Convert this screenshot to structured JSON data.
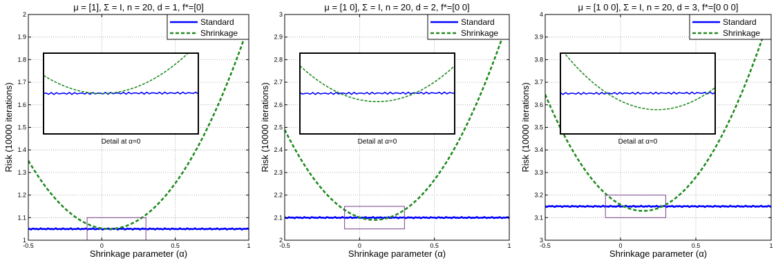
{
  "chart_data": [
    {
      "type": "line",
      "title": "μ = [1], Σ = I, n = 20, d = 1, f*=[0]",
      "xlabel": "Shrinkage parameter (α)",
      "ylabel": "Risk (10000 iterations)",
      "xlim": [
        -0.5,
        1
      ],
      "ylim": [
        1,
        2
      ],
      "xticks": [
        -0.5,
        0,
        0.5,
        1
      ],
      "xtick_labels": [
        "-0.5",
        "0",
        "0.5",
        "1"
      ],
      "yticks": [
        1,
        1.1,
        1.2,
        1.3,
        1.4,
        1.5,
        1.6,
        1.7,
        1.8,
        1.9,
        2
      ],
      "ytick_labels": [
        "1",
        "1.1",
        "1.2",
        "1.3",
        "1.4",
        "1.5",
        "1.6",
        "1.7",
        "1.8",
        "1.9",
        "2"
      ],
      "grid": true,
      "legend_position": "top-right",
      "series": [
        {
          "name": "Standard",
          "color": "#0000ff",
          "style": "solid",
          "standard_level": 1.05
        },
        {
          "name": "Shrinkage",
          "color": "#1f8a1f",
          "style": "dashed",
          "quad": {
            "min": 1.05,
            "vertex": 0.05,
            "curv": 1.0
          }
        }
      ],
      "detail_box": {
        "x": [
          -0.1,
          0.3
        ],
        "y": [
          1.0,
          1.1
        ]
      },
      "inset_label": "Detail at α=0"
    },
    {
      "type": "line",
      "title": "μ = [1 0], Σ = I, n = 20, d = 2, f*=[0 0]",
      "xlabel": "Shrinkage parameter (α)",
      "ylabel": "Risk (10000 iterations)",
      "xlim": [
        -0.5,
        1
      ],
      "ylim": [
        2,
        3
      ],
      "xticks": [
        -0.5,
        0,
        0.5,
        1
      ],
      "xtick_labels": [
        "-0.5",
        "0",
        "0.5",
        "1"
      ],
      "yticks": [
        2,
        2.1,
        2.2,
        2.3,
        2.4,
        2.5,
        2.6,
        2.7,
        2.8,
        2.9,
        3
      ],
      "ytick_labels": [
        "2",
        "2.1",
        "2.2",
        "2.3",
        "2.4",
        "2.5",
        "2.6",
        "2.7",
        "2.8",
        "2.9",
        "3"
      ],
      "grid": true,
      "legend_position": "top-right",
      "series": [
        {
          "name": "Standard",
          "color": "#0000ff",
          "style": "solid",
          "standard_level": 2.1
        },
        {
          "name": "Shrinkage",
          "color": "#1f8a1f",
          "style": "dashed",
          "quad": {
            "min": 2.09,
            "vertex": 0.1,
            "curv": 1.11
          }
        }
      ],
      "detail_box": {
        "x": [
          -0.1,
          0.3
        ],
        "y": [
          2.05,
          2.15
        ]
      },
      "inset_label": "Detail at α=0"
    },
    {
      "type": "line",
      "title": "μ = [1 0 0], Σ = I, n = 20, d = 3, f*=[0 0 0]",
      "xlabel": "Shrinkage parameter (α)",
      "ylabel": "Risk (10000 iterations)",
      "xlim": [
        -0.5,
        1
      ],
      "ylim": [
        3,
        4
      ],
      "xticks": [
        -0.5,
        0,
        0.5,
        1
      ],
      "xtick_labels": [
        "-0.5",
        "0",
        "0.5",
        "1"
      ],
      "yticks": [
        3,
        3.1,
        3.2,
        3.3,
        3.4,
        3.5,
        3.6,
        3.7,
        3.8,
        3.9,
        4
      ],
      "ytick_labels": [
        "3",
        "3.1",
        "3.2",
        "3.3",
        "3.4",
        "3.5",
        "3.6",
        "3.7",
        "3.8",
        "3.9",
        "4"
      ],
      "grid": true,
      "legend_position": "top-right",
      "series": [
        {
          "name": "Standard",
          "color": "#0000ff",
          "style": "solid",
          "standard_level": 3.15
        },
        {
          "name": "Shrinkage",
          "color": "#1f8a1f",
          "style": "dashed",
          "quad": {
            "min": 3.13,
            "vertex": 0.15,
            "curv": 1.22
          }
        }
      ],
      "detail_box": {
        "x": [
          -0.1,
          0.3
        ],
        "y": [
          3.1,
          3.2
        ]
      },
      "inset_label": "Detail at α=0"
    }
  ]
}
